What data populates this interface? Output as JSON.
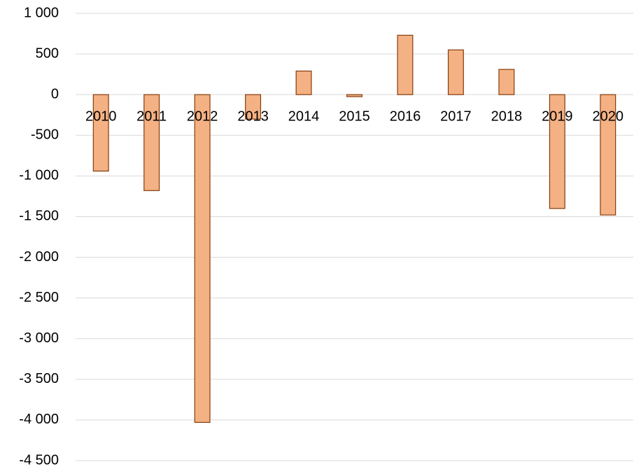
{
  "chart_data": {
    "type": "bar",
    "categories": [
      "2010",
      "2011",
      "2012",
      "2013",
      "2014",
      "2015",
      "2016",
      "2017",
      "2018",
      "2019",
      "2020"
    ],
    "values": [
      -940,
      -1180,
      -4030,
      -300,
      290,
      -25,
      730,
      550,
      310,
      -1400,
      -1480
    ],
    "color": "#f4b183",
    "edge_color": "#843c0c",
    "ylim": [
      -4500,
      1000
    ],
    "yticks": [
      {
        "value": -4500,
        "label": "-4 500"
      },
      {
        "value": -4000,
        "label": "-4 000"
      },
      {
        "value": -3500,
        "label": "-3 500"
      },
      {
        "value": -3000,
        "label": "-3 000"
      },
      {
        "value": -2500,
        "label": "-2 500"
      },
      {
        "value": -2000,
        "label": "-2 000"
      },
      {
        "value": -1500,
        "label": "-1 500"
      },
      {
        "value": -1000,
        "label": "-1 000"
      },
      -500,
      0,
      500,
      {
        "value": 1000,
        "label": "1 000"
      }
    ],
    "grid": true
  }
}
